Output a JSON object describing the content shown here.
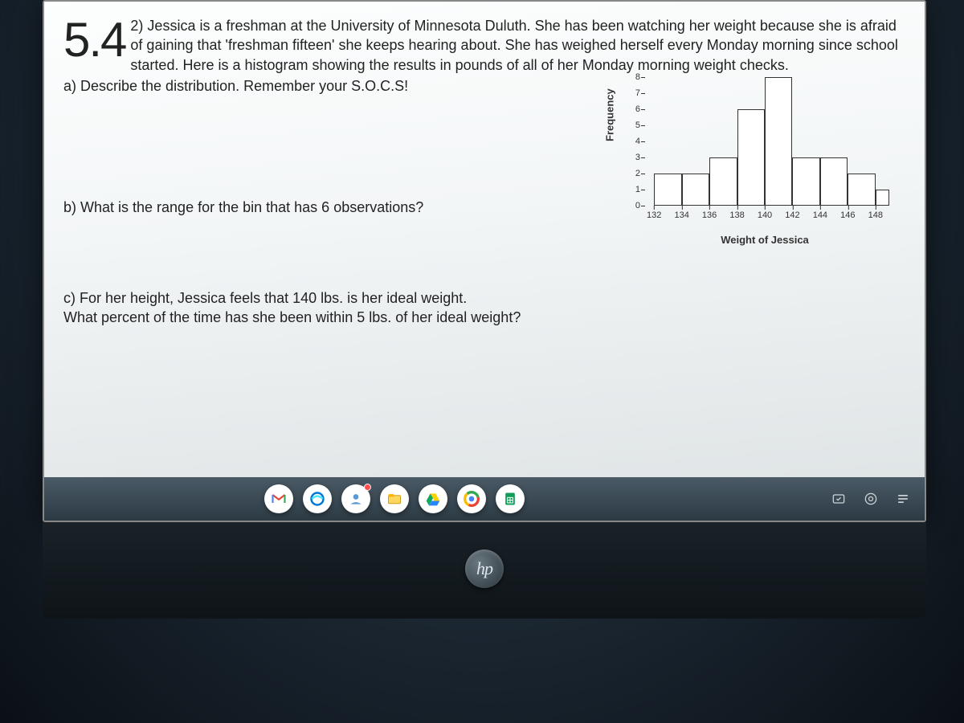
{
  "section_number": "5.4",
  "question_number_text": "2) Jessica is a freshman at the University of Minnesota Duluth. She has been watching her weight because she is afraid of gaining that 'freshman fifteen' she keeps hearing about. She has weighed herself every Monday morning since school started. Here is a histogram showing the results in pounds of all of her Monday morning weight checks.",
  "part_a": "a) Describe the distribution. Remember your S.O.C.S!",
  "part_b": "b) What is the range for the bin that has 6 observations?",
  "part_c_line1": "c) For her height, Jessica feels that 140 lbs. is her ideal weight.",
  "part_c_line2": "What percent of the time has she been within 5 lbs. of her ideal weight?",
  "histogram": {
    "type": "histogram",
    "x_label": "Weight of Jessica",
    "y_label": "Frequency",
    "x_ticks": [
      132,
      134,
      136,
      138,
      140,
      142,
      144,
      146,
      148
    ],
    "y_ticks": [
      0,
      1,
      2,
      3,
      4,
      5,
      6,
      7,
      8
    ],
    "ylim": [
      0,
      8
    ],
    "xlim": [
      131,
      149
    ],
    "bins": [
      {
        "from": 132,
        "to": 134,
        "count": 2
      },
      {
        "from": 134,
        "to": 136,
        "count": 2
      },
      {
        "from": 136,
        "to": 138,
        "count": 3
      },
      {
        "from": 138,
        "to": 140,
        "count": 6
      },
      {
        "from": 140,
        "to": 142,
        "count": 8
      },
      {
        "from": 142,
        "to": 144,
        "count": 3
      },
      {
        "from": 144,
        "to": 146,
        "count": 3
      },
      {
        "from": 146,
        "to": 148,
        "count": 2
      },
      {
        "from": 148,
        "to": 149,
        "count": 1
      }
    ],
    "bar_fill": "#ffffff",
    "bar_border": "#333333",
    "axis_color": "#333333",
    "label_fontsize": 13,
    "tick_fontsize": 11
  },
  "taskbar": {
    "apps": [
      {
        "name": "gmail",
        "letter": "M",
        "colors": [
          "#ea4335",
          "#fbbc05",
          "#34a853",
          "#4285f4"
        ]
      },
      {
        "name": "edge",
        "bg": "#ffffff"
      },
      {
        "name": "people",
        "bg": "#ffffff"
      },
      {
        "name": "explorer",
        "bg": "#ffffff"
      },
      {
        "name": "drive",
        "bg": "#ffffff"
      },
      {
        "name": "chrome",
        "bg": "#ffffff"
      },
      {
        "name": "sheets",
        "bg": "#ffffff"
      }
    ],
    "sys": [
      "onedrive",
      "sound",
      "menu"
    ]
  },
  "logo_text": "hp"
}
